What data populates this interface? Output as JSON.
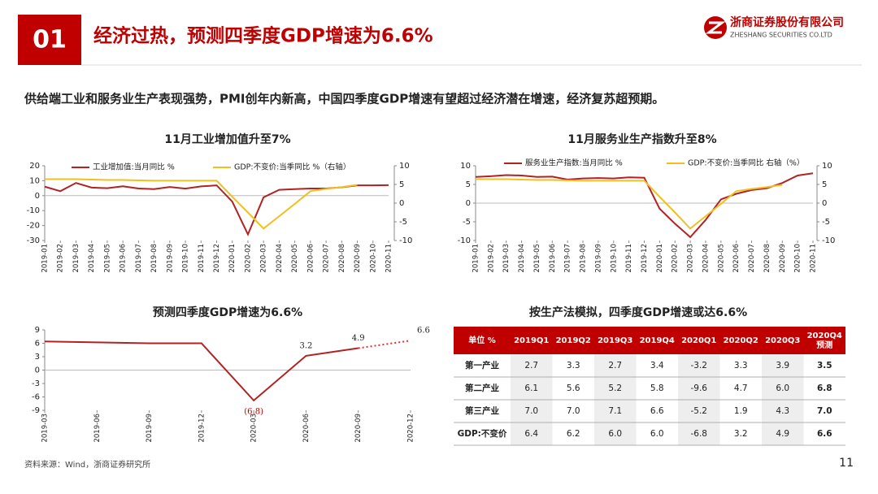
{
  "header": {
    "number": "01",
    "title": "经济过热，预测四季度GDP增速为6.6%",
    "company": "浙商证券股份有限公司",
    "company_en": "ZHESHANG SECURITIES CO.LTD"
  },
  "subtitle": "供给端工业和服务业生产表现强势，PMI创年内新高，中国四季度GDP增速有望超过经济潜在增速，经济复苏超预期。",
  "chart_data": [
    {
      "type": "line",
      "title": "11月工业增加值升至7%",
      "categories": [
        "2019-01",
        "2019-02",
        "2019-03",
        "2019-04",
        "2019-05",
        "2019-06",
        "2019-07",
        "2019-08",
        "2019-09",
        "2019-10",
        "2019-11",
        "2019-12",
        "2020-01",
        "2020-02",
        "2020-03",
        "2020-04",
        "2020-05",
        "2020-06",
        "2020-07",
        "2020-08",
        "2020-09",
        "2020-10",
        "2020-11"
      ],
      "ylim": [
        -30,
        20
      ],
      "yticks": [
        -30,
        -20,
        -10,
        0,
        10,
        20
      ],
      "y2lim": [
        -10,
        10
      ],
      "y2ticks": [
        -10,
        -5,
        0,
        5,
        10
      ],
      "series": [
        {
          "name": "工业增加值:当月同比 %",
          "color": "#b22222",
          "values": [
            6,
            3,
            8.5,
            5.4,
            5.0,
            6.3,
            4.8,
            4.4,
            5.8,
            4.7,
            6.2,
            6.9,
            -4,
            -25.9,
            -1.1,
            3.9,
            4.4,
            4.8,
            4.8,
            5.6,
            6.9,
            6.9,
            7.0
          ]
        },
        {
          "name": "GDP:不变价:当季同比 %（右轴）",
          "color": "#f0c020",
          "axis": "y2",
          "values": [
            6.4,
            6.4,
            6.4,
            6.3,
            6.2,
            6.2,
            6.1,
            6.0,
            6.0,
            6.0,
            6.0,
            6.0,
            1.7,
            -2.5,
            -6.8,
            -3.5,
            -0.2,
            3.2,
            3.8,
            4.3,
            4.9,
            null,
            null
          ]
        }
      ]
    },
    {
      "type": "line",
      "title": "11月服务业生产指数升至8%",
      "categories": [
        "2019-01",
        "2019-02",
        "2019-03",
        "2019-04",
        "2019-05",
        "2019-06",
        "2019-07",
        "2019-08",
        "2019-09",
        "2019-10",
        "2019-11",
        "2019-12",
        "2020-01",
        "2020-02",
        "2020-03",
        "2020-04",
        "2020-05",
        "2020-06",
        "2020-07",
        "2020-08",
        "2020-09",
        "2020-10",
        "2020-11"
      ],
      "ylim": [
        -10,
        10
      ],
      "yticks": [
        -10,
        -5,
        0,
        5,
        10
      ],
      "y2lim": [
        -10,
        10
      ],
      "y2ticks": [
        -10,
        -5,
        0,
        5,
        10
      ],
      "series": [
        {
          "name": "服务业生产指数:当月同比 %",
          "color": "#b22222",
          "values": [
            7.0,
            7.2,
            7.5,
            7.4,
            7.0,
            7.1,
            6.3,
            6.6,
            6.7,
            6.6,
            6.9,
            6.8,
            -1.5,
            -5.5,
            -9.1,
            -4.5,
            1.0,
            2.5,
            3.5,
            4.0,
            5.4,
            7.4,
            8.0
          ]
        },
        {
          "name": "GDP:不变价:当季同比 右轴（%）",
          "color": "#f0c020",
          "axis": "y2",
          "values": [
            6.4,
            6.4,
            6.4,
            6.3,
            6.2,
            6.2,
            6.1,
            6.0,
            6.0,
            6.0,
            6.0,
            6.0,
            1.7,
            -2.5,
            -6.8,
            -3.5,
            -0.2,
            3.2,
            3.8,
            4.3,
            4.9,
            null,
            null
          ]
        }
      ]
    },
    {
      "type": "line",
      "title": "预测四季度GDP增速为6.6%",
      "categories": [
        "2019-03",
        "2019-06",
        "2019-09",
        "2019-12",
        "2020-03",
        "2020-06",
        "2020-09",
        "2020-12"
      ],
      "ylim": [
        -9,
        9
      ],
      "yticks": [
        -9,
        -6,
        -3,
        0,
        3,
        6,
        9
      ],
      "series": [
        {
          "color": "#b22222",
          "values": [
            6.4,
            6.2,
            6.0,
            6.0,
            -6.8,
            3.2,
            4.9,
            null
          ],
          "value_labels": [
            null,
            null,
            null,
            null,
            "(6.8)",
            "3.2",
            "4.9",
            null
          ]
        },
        {
          "color": "#e03030",
          "dashed": true,
          "values": [
            null,
            null,
            null,
            null,
            null,
            null,
            4.9,
            6.6
          ],
          "value_labels": [
            null,
            null,
            null,
            null,
            null,
            null,
            null,
            "6.6"
          ]
        }
      ]
    }
  ],
  "table": {
    "title": "按生产法模拟，四季度GDP增速或达6.6%",
    "header": [
      "单位 %",
      "2019Q1",
      "2019Q2",
      "2019Q3",
      "2019Q4",
      "2020Q1",
      "2020Q2",
      "2020Q3",
      [
        "2020Q4",
        "预测"
      ]
    ],
    "rows": [
      [
        "第一产业",
        "2.7",
        "3.3",
        "2.7",
        "3.4",
        "-3.2",
        "3.3",
        "3.9",
        "3.5"
      ],
      [
        "第二产业",
        "6.1",
        "5.6",
        "5.2",
        "5.8",
        "-9.6",
        "4.7",
        "6.0",
        "6.8"
      ],
      [
        "第三产业",
        "7.0",
        "7.0",
        "7.1",
        "6.6",
        "-5.2",
        "1.9",
        "4.3",
        "7.0"
      ],
      [
        "GDP:不变价",
        "6.4",
        "6.2",
        "6.0",
        "6.0",
        "-6.8",
        "3.2",
        "4.9",
        "6.6"
      ]
    ]
  },
  "footer": {
    "source": "资料来源：Wind，浙商证券研究所",
    "page": "11"
  }
}
